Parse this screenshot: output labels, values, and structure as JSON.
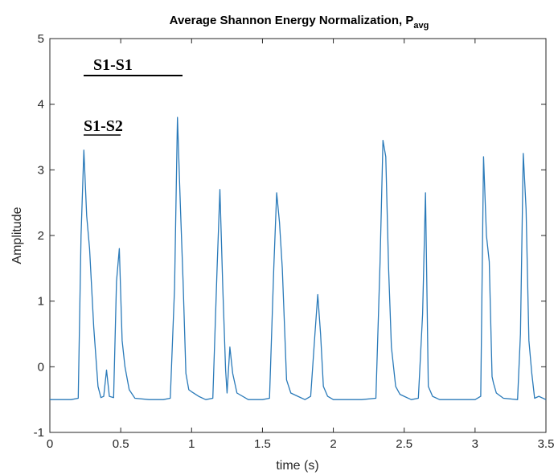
{
  "chart_data": {
    "type": "line",
    "title": "Average Shannon Energy Normalization, P",
    "title_subscript": "avg",
    "xlabel": "time (s)",
    "ylabel": "Amplitude",
    "xlim": [
      0,
      3.5
    ],
    "ylim": [
      -1,
      5
    ],
    "xticks": [
      0,
      0.5,
      1,
      1.5,
      2,
      2.5,
      3,
      3.5
    ],
    "xtick_labels": [
      "0",
      "0.5",
      "1",
      "1.5",
      "2",
      "2.5",
      "3",
      "3.5"
    ],
    "yticks": [
      -1,
      0,
      1,
      2,
      3,
      4,
      5
    ],
    "ytick_labels": [
      "-1",
      "0",
      "1",
      "2",
      "3",
      "4",
      "5"
    ],
    "grid": false,
    "colors": {
      "series": "#2a7ab9",
      "axis": "#262626"
    },
    "annotations": [
      {
        "text": "S1-S1",
        "underlined": true
      },
      {
        "text": "S1-S2",
        "underlined_part": "S1-S"
      }
    ],
    "series": [
      {
        "x": [
          0,
          0.05,
          0.1,
          0.15,
          0.2,
          0.22,
          0.24,
          0.26,
          0.28,
          0.31,
          0.34,
          0.36,
          0.38,
          0.4,
          0.42,
          0.45,
          0.47,
          0.49,
          0.51,
          0.53,
          0.56,
          0.6,
          0.7,
          0.8,
          0.85,
          0.88,
          0.9,
          0.92,
          0.94,
          0.96,
          0.98,
          1.0,
          1.05,
          1.1,
          1.15,
          1.18,
          1.2,
          1.22,
          1.24,
          1.25,
          1.27,
          1.29,
          1.32,
          1.4,
          1.5,
          1.55,
          1.58,
          1.6,
          1.62,
          1.64,
          1.67,
          1.7,
          1.75,
          1.8,
          1.84,
          1.87,
          1.89,
          1.91,
          1.93,
          1.96,
          2.0,
          2.1,
          2.2,
          2.3,
          2.33,
          2.35,
          2.37,
          2.39,
          2.41,
          2.44,
          2.47,
          2.5,
          2.55,
          2.6,
          2.63,
          2.65,
          2.67,
          2.7,
          2.75,
          2.8,
          2.9,
          3.0,
          3.04,
          3.06,
          3.08,
          3.1,
          3.12,
          3.13,
          3.15,
          3.2,
          3.3,
          3.32,
          3.34,
          3.36,
          3.38,
          3.4,
          3.42,
          3.45,
          3.5
        ],
        "y": [
          -0.5,
          -0.5,
          -0.5,
          -0.5,
          -0.48,
          2.0,
          3.3,
          2.3,
          1.8,
          0.6,
          -0.3,
          -0.47,
          -0.45,
          -0.05,
          -0.45,
          -0.47,
          1.3,
          1.8,
          0.4,
          0.0,
          -0.35,
          -0.48,
          -0.5,
          -0.5,
          -0.48,
          1.2,
          3.8,
          2.5,
          1.3,
          -0.1,
          -0.35,
          -0.38,
          -0.45,
          -0.5,
          -0.48,
          1.5,
          2.7,
          1.2,
          -0.05,
          -0.4,
          0.3,
          -0.1,
          -0.4,
          -0.5,
          -0.5,
          -0.48,
          1.5,
          2.65,
          2.2,
          1.5,
          -0.2,
          -0.4,
          -0.45,
          -0.5,
          -0.45,
          0.5,
          1.1,
          0.5,
          -0.3,
          -0.45,
          -0.5,
          -0.5,
          -0.5,
          -0.48,
          1.6,
          3.45,
          3.2,
          1.5,
          0.3,
          -0.3,
          -0.42,
          -0.45,
          -0.5,
          -0.48,
          0.8,
          2.65,
          -0.3,
          -0.45,
          -0.5,
          -0.5,
          -0.5,
          -0.5,
          -0.45,
          3.2,
          2.0,
          1.6,
          -0.15,
          -0.25,
          -0.4,
          -0.48,
          -0.5,
          0.5,
          3.25,
          2.4,
          0.4,
          -0.1,
          -0.48,
          -0.45,
          -0.5
        ]
      }
    ]
  }
}
